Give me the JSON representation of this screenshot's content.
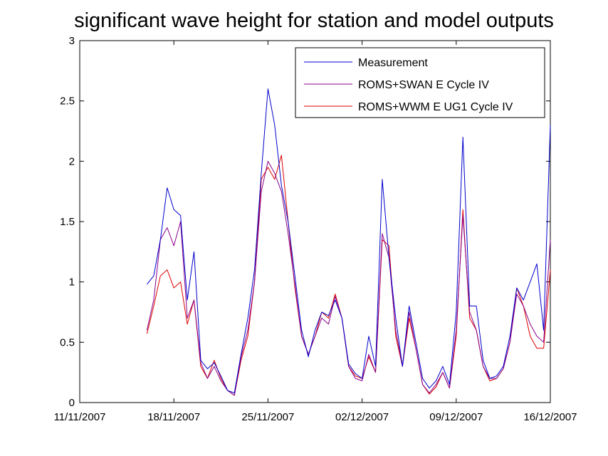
{
  "chart_data": {
    "type": "line",
    "title": "significant wave height for station and model outputs",
    "xlabel": "",
    "ylabel": "",
    "x_axis": {
      "type": "date",
      "range": [
        "2007-11-11",
        "2007-12-16"
      ],
      "ticks": [
        "2007-11-11",
        "2007-11-18",
        "2007-11-25",
        "2007-12-02",
        "2007-12-09",
        "2007-12-16"
      ],
      "tick_labels": [
        "11/11/2007",
        "18/11/2007",
        "25/11/2007",
        "02/12/2007",
        "09/12/2007",
        "16/12/2007"
      ]
    },
    "y_axis": {
      "range": [
        0,
        3
      ],
      "ticks": [
        0,
        0.5,
        1,
        1.5,
        2,
        2.5,
        3
      ],
      "tick_labels": [
        "0",
        "0.5",
        "1",
        "1.5",
        "2",
        "2.5",
        "3"
      ]
    },
    "grid": false,
    "legend_position": "top-right",
    "x": [
      "2007-11-16T00:00",
      "2007-11-16T12:00",
      "2007-11-17T00:00",
      "2007-11-17T12:00",
      "2007-11-18T00:00",
      "2007-11-18T12:00",
      "2007-11-19T00:00",
      "2007-11-19T12:00",
      "2007-11-20T00:00",
      "2007-11-20T12:00",
      "2007-11-21T00:00",
      "2007-11-21T12:00",
      "2007-11-22T00:00",
      "2007-11-22T12:00",
      "2007-11-23T00:00",
      "2007-11-23T12:00",
      "2007-11-24T00:00",
      "2007-11-24T12:00",
      "2007-11-25T00:00",
      "2007-11-25T12:00",
      "2007-11-26T00:00",
      "2007-11-26T12:00",
      "2007-11-27T00:00",
      "2007-11-27T12:00",
      "2007-11-28T00:00",
      "2007-11-28T12:00",
      "2007-11-29T00:00",
      "2007-11-29T12:00",
      "2007-11-30T00:00",
      "2007-11-30T12:00",
      "2007-12-01T00:00",
      "2007-12-01T12:00",
      "2007-12-02T00:00",
      "2007-12-02T12:00",
      "2007-12-03T00:00",
      "2007-12-03T12:00",
      "2007-12-04T00:00",
      "2007-12-04T12:00",
      "2007-12-05T00:00",
      "2007-12-05T12:00",
      "2007-12-06T00:00",
      "2007-12-06T12:00",
      "2007-12-07T00:00",
      "2007-12-07T12:00",
      "2007-12-08T00:00",
      "2007-12-08T12:00",
      "2007-12-09T00:00",
      "2007-12-09T12:00",
      "2007-12-10T00:00",
      "2007-12-10T12:00",
      "2007-12-11T00:00",
      "2007-12-11T12:00",
      "2007-12-12T00:00",
      "2007-12-12T12:00",
      "2007-12-13T00:00",
      "2007-12-13T12:00",
      "2007-12-14T00:00",
      "2007-12-14T12:00",
      "2007-12-15T00:00",
      "2007-12-15T12:00",
      "2007-12-16T00:00"
    ],
    "series": [
      {
        "name": "Measurement",
        "color": "#0000cc",
        "values": [
          0.98,
          1.05,
          1.35,
          1.78,
          1.6,
          1.55,
          0.85,
          1.25,
          0.35,
          0.28,
          0.33,
          0.22,
          0.1,
          0.08,
          0.4,
          0.7,
          1.1,
          1.9,
          2.6,
          2.3,
          1.8,
          1.5,
          1.05,
          0.6,
          0.38,
          0.6,
          0.75,
          0.72,
          0.85,
          0.7,
          0.32,
          0.24,
          0.2,
          0.55,
          0.3,
          1.85,
          1.2,
          0.7,
          0.3,
          0.8,
          0.5,
          0.2,
          0.12,
          0.18,
          0.3,
          0.15,
          0.75,
          2.2,
          0.8,
          0.8,
          0.35,
          0.2,
          0.22,
          0.3,
          0.55,
          0.95,
          0.85,
          1.0,
          1.15,
          0.6,
          2.3
        ]
      },
      {
        "name": "ROMS+SWAN E Cycle IV",
        "color": "#880088",
        "values": [
          0.6,
          0.85,
          1.35,
          1.45,
          1.3,
          1.5,
          0.7,
          0.85,
          0.33,
          0.2,
          0.3,
          0.18,
          0.1,
          0.06,
          0.38,
          0.6,
          1.0,
          1.75,
          2.0,
          1.9,
          1.75,
          1.4,
          0.98,
          0.55,
          0.4,
          0.55,
          0.7,
          0.65,
          0.88,
          0.7,
          0.3,
          0.2,
          0.18,
          0.4,
          0.25,
          1.4,
          1.2,
          0.6,
          0.3,
          0.75,
          0.45,
          0.15,
          0.08,
          0.15,
          0.25,
          0.12,
          0.6,
          1.55,
          0.75,
          0.6,
          0.3,
          0.2,
          0.2,
          0.28,
          0.5,
          0.9,
          0.8,
          0.65,
          0.55,
          0.5,
          1.35
        ]
      },
      {
        "name": "ROMS+WWM E UG1 Cycle IV",
        "color": "#dd0000",
        "values": [
          0.57,
          0.8,
          1.05,
          1.1,
          0.95,
          1.0,
          0.65,
          0.85,
          0.3,
          0.2,
          0.35,
          0.2,
          0.1,
          0.06,
          0.35,
          0.55,
          1.0,
          1.85,
          1.95,
          1.85,
          2.05,
          1.5,
          0.95,
          0.55,
          0.4,
          0.55,
          0.75,
          0.7,
          0.9,
          0.7,
          0.3,
          0.22,
          0.2,
          0.38,
          0.25,
          1.35,
          1.3,
          0.55,
          0.3,
          0.7,
          0.45,
          0.15,
          0.07,
          0.13,
          0.25,
          0.12,
          0.55,
          1.6,
          0.7,
          0.6,
          0.3,
          0.18,
          0.2,
          0.28,
          0.5,
          0.95,
          0.8,
          0.55,
          0.45,
          0.45,
          1.1
        ]
      }
    ]
  }
}
